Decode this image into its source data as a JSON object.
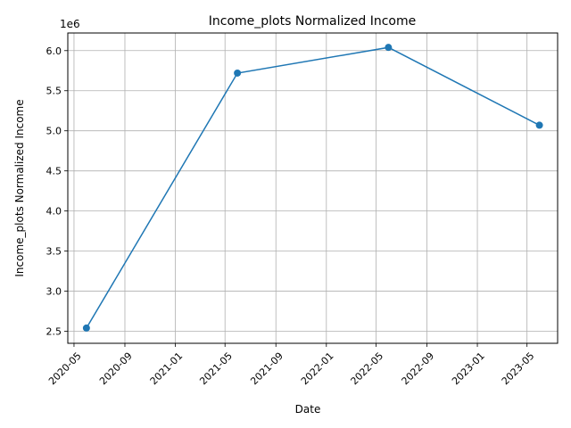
{
  "chart_data": {
    "type": "line",
    "title": "Income_plots Normalized Income",
    "xlabel": "Date",
    "ylabel": "Income_plots Normalized Income",
    "y_offset_text": "1e6",
    "y_scale_factor": 1000000,
    "x_tick_labels": [
      "2020-05",
      "2020-09",
      "2021-01",
      "2021-05",
      "2021-09",
      "2022-01",
      "2022-05",
      "2022-09",
      "2023-01",
      "2023-05"
    ],
    "x_tick_dates": [
      "2020-05-01",
      "2020-09-01",
      "2021-01-01",
      "2021-05-01",
      "2021-09-01",
      "2022-01-01",
      "2022-05-01",
      "2022-09-01",
      "2023-01-01",
      "2023-05-01"
    ],
    "y_ticks": [
      2.5,
      3.0,
      3.5,
      4.0,
      4.5,
      5.0,
      5.5,
      6.0
    ],
    "y_tick_labels": [
      "2.5",
      "3.0",
      "3.5",
      "4.0",
      "4.5",
      "5.0",
      "5.5",
      "6.0"
    ],
    "xlim": [
      "2020-04-16",
      "2023-07-14"
    ],
    "ylim": [
      2350000,
      6220000
    ],
    "grid": true,
    "series": [
      {
        "color": "#1f77b4",
        "marker": "circle",
        "x": [
          "2020-05-31",
          "2021-05-31",
          "2022-05-31",
          "2023-05-31"
        ],
        "values": [
          2540000,
          5720000,
          6040000,
          5070000
        ]
      }
    ]
  }
}
